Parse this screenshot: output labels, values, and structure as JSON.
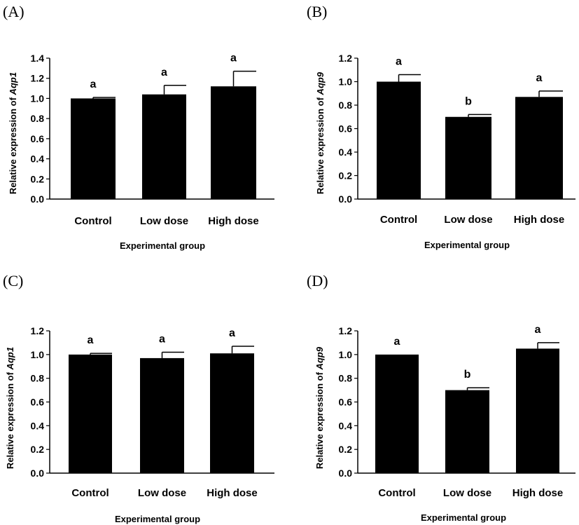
{
  "chart_data": [
    {
      "type": "bar",
      "panel": "(A)",
      "categories": [
        "Control",
        "Low dose",
        "High dose"
      ],
      "values": [
        1.0,
        1.04,
        1.12
      ],
      "errors": [
        0.01,
        0.09,
        0.15
      ],
      "significance": [
        "a",
        "a",
        "a"
      ],
      "xlabel": "Experimental group",
      "ylabel_prefix": "Relative expression of ",
      "ylabel_gene": "Aqp1",
      "ylim": [
        0,
        1.4
      ],
      "yticks": [
        0,
        0.2,
        0.4,
        0.6,
        0.8,
        1.0,
        1.2,
        1.4
      ],
      "ytick_labels": [
        "0.0",
        "0.2",
        "0.4",
        "0.6",
        "0.8",
        "1.0",
        "1.2",
        "1.4"
      ],
      "grid": false,
      "bar_color": "#000000"
    },
    {
      "type": "bar",
      "panel": "(B)",
      "categories": [
        "Control",
        "Low dose",
        "High dose"
      ],
      "values": [
        1.0,
        0.7,
        0.87
      ],
      "errors": [
        0.06,
        0.02,
        0.05
      ],
      "significance": [
        "a",
        "b",
        "a"
      ],
      "xlabel": "Experimental group",
      "ylabel_prefix": "Relative expression of ",
      "ylabel_gene": "Aqp9",
      "ylim": [
        0,
        1.2
      ],
      "yticks": [
        0,
        0.2,
        0.4,
        0.6,
        0.8,
        1.0,
        1.2
      ],
      "ytick_labels": [
        "0.0",
        "0.2",
        "0.4",
        "0.6",
        "0.8",
        "1.0",
        "1.2"
      ],
      "grid": false,
      "bar_color": "#000000"
    },
    {
      "type": "bar",
      "panel": "(C)",
      "categories": [
        "Control",
        "Low dose",
        "High dose"
      ],
      "values": [
        1.0,
        0.97,
        1.01
      ],
      "errors": [
        0.01,
        0.05,
        0.06
      ],
      "significance": [
        "a",
        "a",
        "a"
      ],
      "xlabel": "Experimental group",
      "ylabel_prefix": "Relative expression of ",
      "ylabel_gene": "Aqp1",
      "ylim": [
        0,
        1.2
      ],
      "yticks": [
        0,
        0.2,
        0.4,
        0.6,
        0.8,
        1.0,
        1.2
      ],
      "ytick_labels": [
        "0.0",
        "0.2",
        "0.4",
        "0.6",
        "0.8",
        "1.0",
        "1.2"
      ],
      "grid": false,
      "bar_color": "#000000"
    },
    {
      "type": "bar",
      "panel": "(D)",
      "categories": [
        "Control",
        "Low dose",
        "High dose"
      ],
      "values": [
        1.0,
        0.7,
        1.05
      ],
      "errors": [
        0.0,
        0.02,
        0.05
      ],
      "significance": [
        "a",
        "b",
        "a"
      ],
      "xlabel": "Experimental group",
      "ylabel_prefix": "Relative expression of ",
      "ylabel_gene": "Aqp9",
      "ylim": [
        0,
        1.2
      ],
      "yticks": [
        0,
        0.2,
        0.4,
        0.6,
        0.8,
        1.0,
        1.2
      ],
      "ytick_labels": [
        "0.0",
        "0.2",
        "0.4",
        "0.6",
        "0.8",
        "1.0",
        "1.2"
      ],
      "grid": false,
      "bar_color": "#000000"
    }
  ]
}
